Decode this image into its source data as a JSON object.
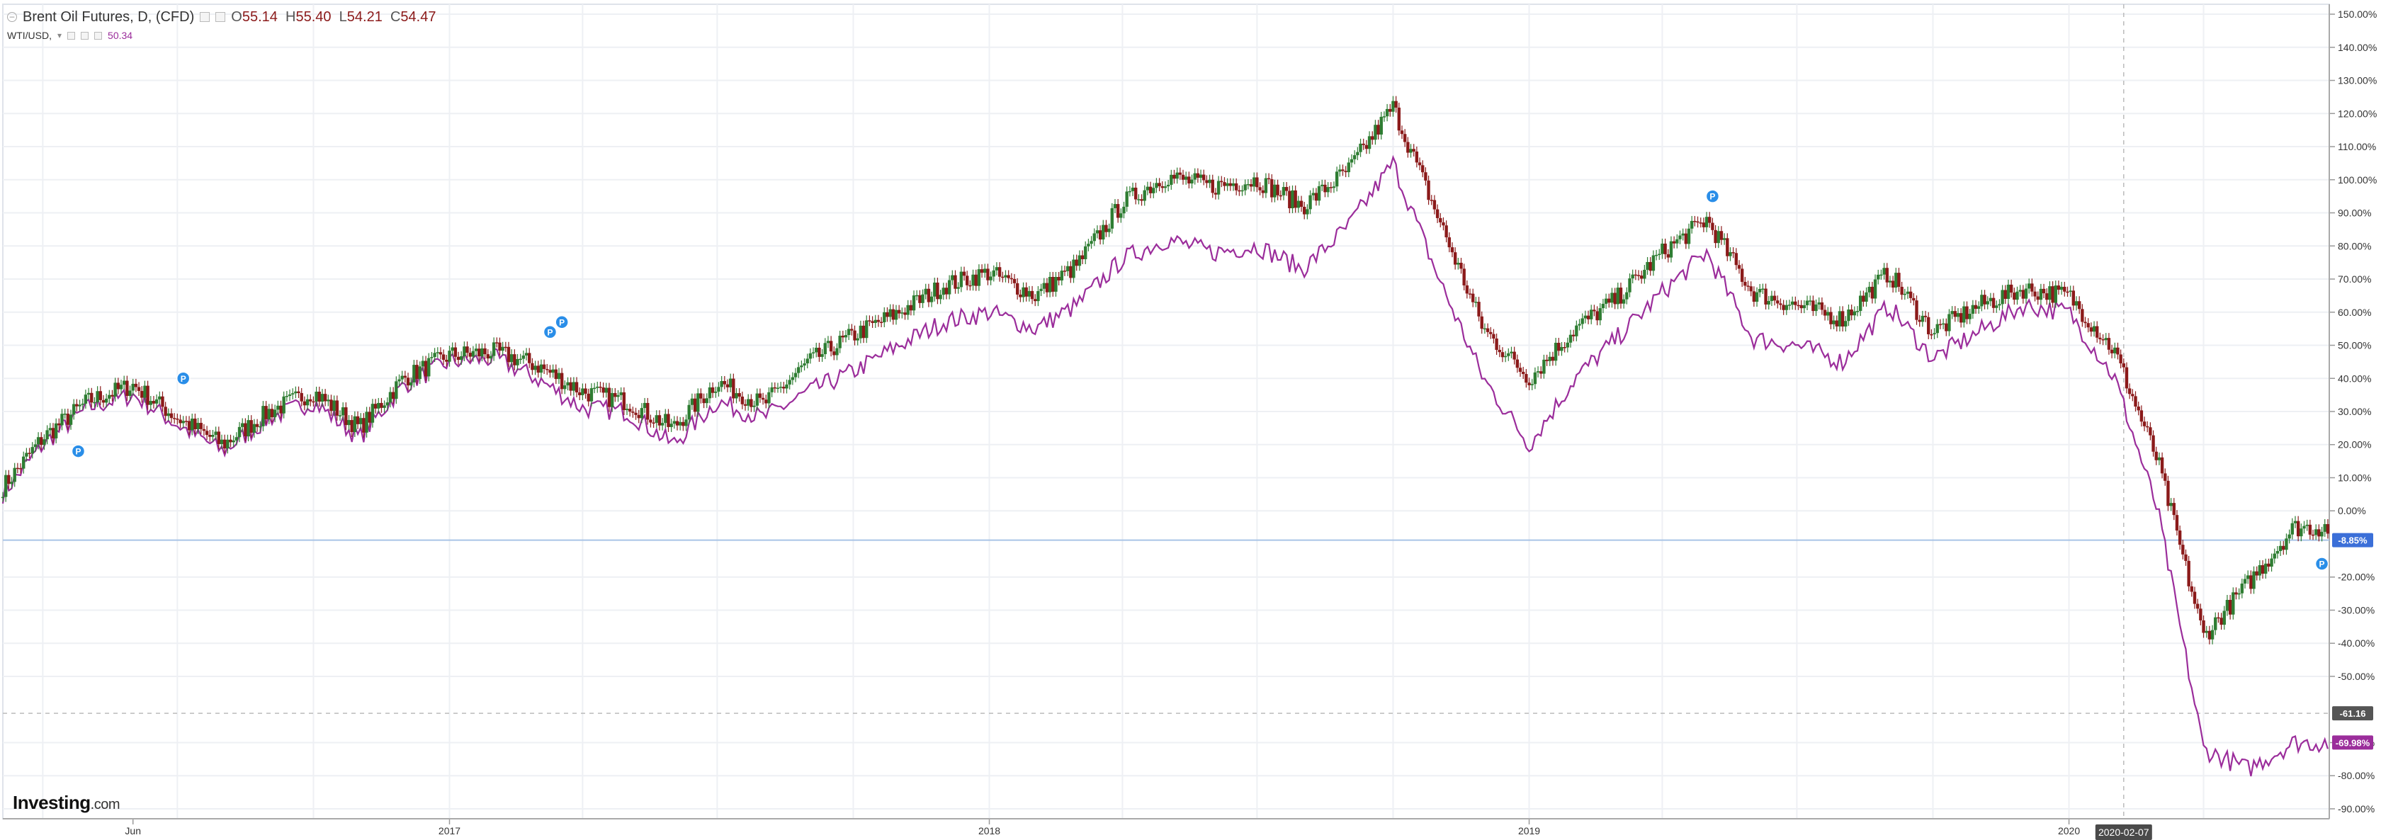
{
  "legend": {
    "main_series": "Brent Oil Futures, D, (CFD)",
    "open_label": "O",
    "open": "55.14",
    "high_label": "H",
    "high": "55.40",
    "low_label": "L",
    "low": "54.21",
    "close_label": "C",
    "close": "54.47",
    "compare_series": "WTI/USD,",
    "compare_value": "50.34"
  },
  "brand": {
    "name": "Investing",
    "suffix": ".com"
  },
  "colors": {
    "up_candle": "#2e7d32",
    "down_candle": "#8b1a1a",
    "wti_line": "#9b2d9b",
    "grid": "#eef0f4",
    "zero_line": "#a9c4e6",
    "badge_current": "#3b6fd8",
    "badge_wti": "#9b2d9b",
    "badge_dark": "#555555",
    "event_marker": "#2a8ee8"
  },
  "chart_data": {
    "type": "line",
    "title": "Brent Oil Futures, D, (CFD)",
    "x_tick_labels": [
      "Jun",
      "2017",
      "2018",
      "2019",
      "2020"
    ],
    "y_unit": "%",
    "y_tick_labels": [
      "150.00%",
      "140.00%",
      "130.00%",
      "120.00%",
      "110.00%",
      "100.00%",
      "90.00%",
      "80.00%",
      "70.00%",
      "60.00%",
      "50.00%",
      "40.00%",
      "30.00%",
      "20.00%",
      "10.00%",
      "0.00%",
      "-20.00%",
      "-30.00%",
      "-40.00%",
      "-50.00%",
      "-70.00%",
      "-80.00%",
      "-90.00%"
    ],
    "y_ticks": [
      150,
      140,
      130,
      120,
      110,
      100,
      90,
      80,
      70,
      60,
      50,
      40,
      30,
      20,
      10,
      0,
      -20,
      -30,
      -40,
      -50,
      -70,
      -80,
      -90
    ],
    "ylim": [
      -93,
      153
    ],
    "grid": true,
    "series": [
      {
        "name": "Brent Oil Futures, D, (CFD)",
        "style": "candlestick",
        "x": [
          "2016-03-01",
          "2016-04-01",
          "2016-05-01",
          "2016-06-01",
          "2016-07-01",
          "2016-08-01",
          "2016-09-01",
          "2016-10-01",
          "2016-11-01",
          "2016-12-01",
          "2017-01-01",
          "2017-02-01",
          "2017-03-01",
          "2017-04-01",
          "2017-05-01",
          "2017-06-01",
          "2017-07-01",
          "2017-08-01",
          "2017-09-01",
          "2017-10-01",
          "2017-11-01",
          "2017-12-01",
          "2018-01-01",
          "2018-02-01",
          "2018-03-01",
          "2018-04-01",
          "2018-05-01",
          "2018-06-01",
          "2018-07-01",
          "2018-08-01",
          "2018-09-01",
          "2018-10-01",
          "2018-11-01",
          "2018-12-01",
          "2019-01-01",
          "2019-02-01",
          "2019-03-01",
          "2019-04-01",
          "2019-05-01",
          "2019-06-01",
          "2019-07-01",
          "2019-08-01",
          "2019-09-01",
          "2019-10-01",
          "2019-11-01",
          "2019-12-01",
          "2020-01-01",
          "2020-02-01",
          "2020-03-01",
          "2020-04-01",
          "2020-05-01",
          "2020-06-01"
        ],
        "values": [
          5,
          22,
          33,
          38,
          28,
          20,
          30,
          36,
          25,
          40,
          47,
          48,
          44,
          36,
          33,
          25,
          39,
          32,
          45,
          53,
          60,
          68,
          72,
          65,
          74,
          93,
          101,
          98,
          100,
          92,
          103,
          122,
          88,
          55,
          40,
          55,
          64,
          78,
          88,
          66,
          62,
          58,
          72,
          54,
          62,
          67,
          65,
          48,
          15,
          -38,
          -22,
          -5
        ]
      },
      {
        "name": "WTI/USD",
        "style": "line",
        "x": [
          "2016-03-01",
          "2016-04-01",
          "2016-05-01",
          "2016-06-01",
          "2016-07-01",
          "2016-08-01",
          "2016-09-01",
          "2016-10-01",
          "2016-11-01",
          "2016-12-01",
          "2017-01-01",
          "2017-02-01",
          "2017-03-01",
          "2017-04-01",
          "2017-05-01",
          "2017-06-01",
          "2017-07-01",
          "2017-08-01",
          "2017-09-01",
          "2017-10-01",
          "2017-11-01",
          "2017-12-01",
          "2018-01-01",
          "2018-02-01",
          "2018-03-01",
          "2018-04-01",
          "2018-05-01",
          "2018-06-01",
          "2018-07-01",
          "2018-08-01",
          "2018-09-01",
          "2018-10-01",
          "2018-11-01",
          "2018-12-01",
          "2019-01-01",
          "2019-02-01",
          "2019-03-01",
          "2019-04-01",
          "2019-05-01",
          "2019-06-01",
          "2019-07-01",
          "2019-08-01",
          "2019-09-01",
          "2019-10-01",
          "2019-11-01",
          "2019-12-01",
          "2020-01-01",
          "2020-02-01",
          "2020-03-01",
          "2020-04-01",
          "2020-05-01",
          "2020-06-01"
        ],
        "values": [
          3,
          20,
          31,
          35,
          26,
          18,
          28,
          33,
          22,
          38,
          45,
          46,
          40,
          31,
          30,
          20,
          33,
          28,
          36,
          42,
          50,
          57,
          60,
          55,
          62,
          76,
          82,
          78,
          80,
          73,
          86,
          105,
          70,
          40,
          20,
          40,
          52,
          66,
          78,
          52,
          50,
          45,
          62,
          46,
          54,
          62,
          60,
          40,
          0,
          -72,
          -78,
          -70
        ]
      }
    ],
    "price_badges": [
      {
        "label": "-8.85%",
        "value": -8.85,
        "kind": "current"
      },
      {
        "label": "-61.16",
        "value": -61.16,
        "kind": "dark"
      },
      {
        "label": "-69.98%",
        "value": -69.98,
        "kind": "wti"
      }
    ],
    "crosshair_date_label": "2020-02-07",
    "event_markers": [
      {
        "x": "2016-04-25",
        "value": 18,
        "label": "P"
      },
      {
        "x": "2016-07-05",
        "value": 40,
        "label": "P"
      },
      {
        "x": "2017-03-10",
        "value": 54,
        "label": "P"
      },
      {
        "x": "2017-03-18",
        "value": 57,
        "label": "P"
      },
      {
        "x": "2019-05-05",
        "value": 95,
        "label": "P"
      },
      {
        "x": "2020-06-20",
        "value": -16,
        "label": "P"
      }
    ]
  }
}
